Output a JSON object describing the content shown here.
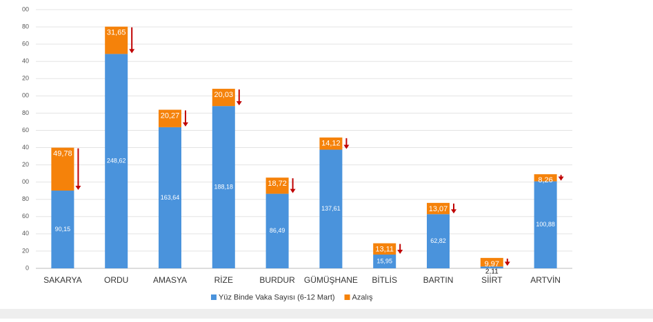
{
  "chart_data": {
    "type": "stacked_bar",
    "categories": [
      "SAKARYA",
      "ORDU",
      "AMASYA",
      "RİZE",
      "BURDUR",
      "GÜMÜŞHANE",
      "BİTLİS",
      "BARTIN",
      "SİİRT",
      "ARTVİN"
    ],
    "series": [
      {
        "name": "Yüz Binde Vaka Sayısı (6-12 Mart)",
        "color": "#4a93dc",
        "values": [
          90.15,
          248.62,
          163.64,
          188.18,
          86.49,
          137.61,
          15.95,
          62.82,
          2.11,
          100.88
        ],
        "value_labels": [
          "90,15",
          "248,62",
          "163,64",
          "188,18",
          "86,49",
          "137,61",
          "15,95",
          "62,82",
          "2,11",
          "100,88"
        ]
      },
      {
        "name": "Azalış",
        "color": "#f5820a",
        "values": [
          49.78,
          31.65,
          20.27,
          20.03,
          18.72,
          14.12,
          13.11,
          13.07,
          9.97,
          8.26
        ],
        "value_labels": [
          "49,78",
          "31,65",
          "20,27",
          "20,03",
          "18,72",
          "14,12",
          "13,11",
          "13,07",
          "9,97",
          "8,26"
        ]
      }
    ],
    "ylim": [
      0,
      300
    ],
    "yticks": [
      0,
      {
        "value": 20,
        "label": "20"
      },
      {
        "value": 40,
        "label": "40"
      },
      {
        "value": 60,
        "label": "60"
      },
      {
        "value": 80,
        "label": "80"
      },
      {
        "value": 100,
        "label": "00"
      },
      {
        "value": 120,
        "label": "20"
      },
      {
        "value": 140,
        "label": "40"
      },
      {
        "value": 160,
        "label": "60"
      },
      {
        "value": 180,
        "label": "80"
      },
      {
        "value": 200,
        "label": "00"
      },
      {
        "value": 220,
        "label": "20"
      },
      {
        "value": 240,
        "label": "40"
      },
      {
        "value": 260,
        "label": "60"
      },
      {
        "value": 280,
        "label": "80"
      },
      {
        "value": 300,
        "label": "00"
      }
    ],
    "grid": true,
    "legend": "bottom",
    "arrow_color": "#c00000"
  }
}
